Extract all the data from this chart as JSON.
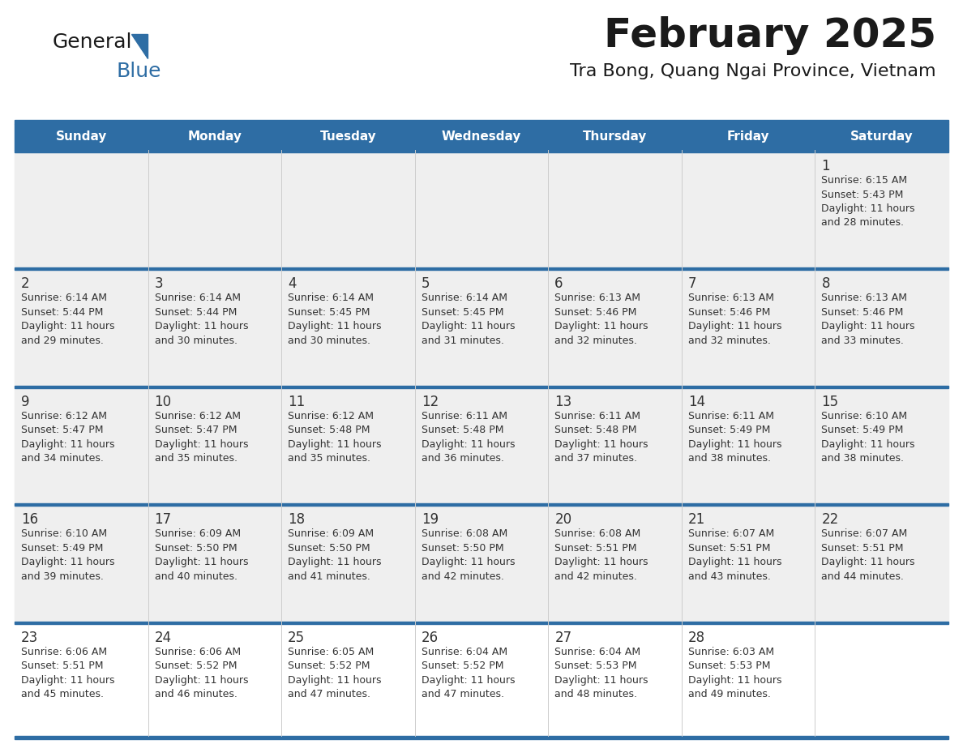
{
  "title": "February 2025",
  "subtitle": "Tra Bong, Quang Ngai Province, Vietnam",
  "header_bg_color": "#2E6DA4",
  "header_text_color": "#FFFFFF",
  "cell_bg_color": "#EFEFEF",
  "cell_white_bg_color": "#FFFFFF",
  "grid_line_color": "#2E6DA4",
  "day_number_color": "#333333",
  "cell_text_color": "#333333",
  "days_of_week": [
    "Sunday",
    "Monday",
    "Tuesday",
    "Wednesday",
    "Thursday",
    "Friday",
    "Saturday"
  ],
  "calendar_data": [
    [
      "",
      "",
      "",
      "",
      "",
      "",
      "1\nSunrise: 6:15 AM\nSunset: 5:43 PM\nDaylight: 11 hours\nand 28 minutes."
    ],
    [
      "2\nSunrise: 6:14 AM\nSunset: 5:44 PM\nDaylight: 11 hours\nand 29 minutes.",
      "3\nSunrise: 6:14 AM\nSunset: 5:44 PM\nDaylight: 11 hours\nand 30 minutes.",
      "4\nSunrise: 6:14 AM\nSunset: 5:45 PM\nDaylight: 11 hours\nand 30 minutes.",
      "5\nSunrise: 6:14 AM\nSunset: 5:45 PM\nDaylight: 11 hours\nand 31 minutes.",
      "6\nSunrise: 6:13 AM\nSunset: 5:46 PM\nDaylight: 11 hours\nand 32 minutes.",
      "7\nSunrise: 6:13 AM\nSunset: 5:46 PM\nDaylight: 11 hours\nand 32 minutes.",
      "8\nSunrise: 6:13 AM\nSunset: 5:46 PM\nDaylight: 11 hours\nand 33 minutes."
    ],
    [
      "9\nSunrise: 6:12 AM\nSunset: 5:47 PM\nDaylight: 11 hours\nand 34 minutes.",
      "10\nSunrise: 6:12 AM\nSunset: 5:47 PM\nDaylight: 11 hours\nand 35 minutes.",
      "11\nSunrise: 6:12 AM\nSunset: 5:48 PM\nDaylight: 11 hours\nand 35 minutes.",
      "12\nSunrise: 6:11 AM\nSunset: 5:48 PM\nDaylight: 11 hours\nand 36 minutes.",
      "13\nSunrise: 6:11 AM\nSunset: 5:48 PM\nDaylight: 11 hours\nand 37 minutes.",
      "14\nSunrise: 6:11 AM\nSunset: 5:49 PM\nDaylight: 11 hours\nand 38 minutes.",
      "15\nSunrise: 6:10 AM\nSunset: 5:49 PM\nDaylight: 11 hours\nand 38 minutes."
    ],
    [
      "16\nSunrise: 6:10 AM\nSunset: 5:49 PM\nDaylight: 11 hours\nand 39 minutes.",
      "17\nSunrise: 6:09 AM\nSunset: 5:50 PM\nDaylight: 11 hours\nand 40 minutes.",
      "18\nSunrise: 6:09 AM\nSunset: 5:50 PM\nDaylight: 11 hours\nand 41 minutes.",
      "19\nSunrise: 6:08 AM\nSunset: 5:50 PM\nDaylight: 11 hours\nand 42 minutes.",
      "20\nSunrise: 6:08 AM\nSunset: 5:51 PM\nDaylight: 11 hours\nand 42 minutes.",
      "21\nSunrise: 6:07 AM\nSunset: 5:51 PM\nDaylight: 11 hours\nand 43 minutes.",
      "22\nSunrise: 6:07 AM\nSunset: 5:51 PM\nDaylight: 11 hours\nand 44 minutes."
    ],
    [
      "23\nSunrise: 6:06 AM\nSunset: 5:51 PM\nDaylight: 11 hours\nand 45 minutes.",
      "24\nSunrise: 6:06 AM\nSunset: 5:52 PM\nDaylight: 11 hours\nand 46 minutes.",
      "25\nSunrise: 6:05 AM\nSunset: 5:52 PM\nDaylight: 11 hours\nand 47 minutes.",
      "26\nSunrise: 6:04 AM\nSunset: 5:52 PM\nDaylight: 11 hours\nand 47 minutes.",
      "27\nSunrise: 6:04 AM\nSunset: 5:53 PM\nDaylight: 11 hours\nand 48 minutes.",
      "28\nSunrise: 6:03 AM\nSunset: 5:53 PM\nDaylight: 11 hours\nand 49 minutes.",
      ""
    ]
  ],
  "logo_text_general": "General",
  "logo_text_blue": "Blue",
  "logo_triangle_color": "#2E6DA4",
  "background_color": "#FFFFFF"
}
